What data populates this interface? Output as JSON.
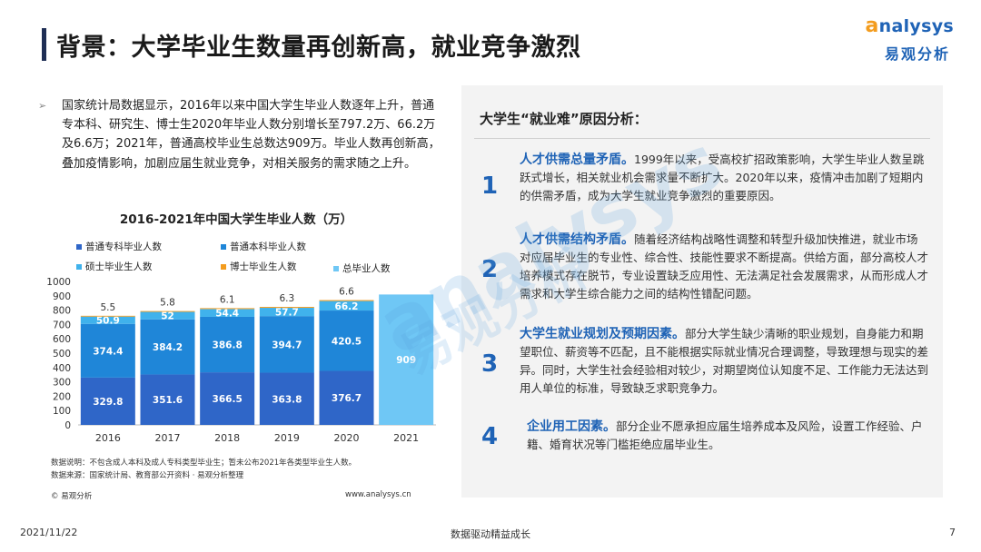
{
  "header": {
    "title": "背景：大学毕业生数量再创新高，就业竞争激烈",
    "logo_en_a": "a",
    "logo_en_rest": "nalysys",
    "logo_cn": "易观分析"
  },
  "bullet": {
    "text": "国家统计局数据显示，2016年以来中国大学生毕业人数逐年上升，普通专本科、研究生、博士生2020年毕业人数分别增长至797.2万、66.2万及6.6万；2021年，普通高校毕业生总数达909万。毕业人数再创新高，叠加疫情影响，加剧应届生就业竞争，对相关服务的需求随之上升。"
  },
  "chart_data": {
    "type": "bar",
    "title": "2016-2021年中国大学生毕业人数（万）",
    "categories": [
      "2016",
      "2017",
      "2018",
      "2019",
      "2020",
      "2021"
    ],
    "series": [
      {
        "name": "普通专科毕业人数",
        "values": [
          329.8,
          351.6,
          366.5,
          363.8,
          376.7,
          null
        ],
        "color": "#2f66c8"
      },
      {
        "name": "普通本科毕业人数",
        "values": [
          374.4,
          384.2,
          386.8,
          394.7,
          420.5,
          null
        ],
        "color": "#1f86d8"
      },
      {
        "name": "硕士毕业生人数",
        "values": [
          50.9,
          52.0,
          54.4,
          57.7,
          66.2,
          null
        ],
        "color": "#40b2ec"
      },
      {
        "name": "博士毕业生人数",
        "values": [
          5.5,
          5.8,
          6.1,
          6.3,
          6.6,
          null
        ],
        "color": "#f39c1e"
      },
      {
        "name": "总毕业人数",
        "values": [
          null,
          null,
          null,
          null,
          null,
          909
        ],
        "color": "#6fc7f5"
      }
    ],
    "ylim": [
      0,
      1000
    ],
    "yticks": [
      0,
      100,
      200,
      300,
      400,
      500,
      600,
      700,
      800,
      900,
      1000
    ],
    "stacked": true,
    "legend_position": "top"
  },
  "notes": {
    "line1": "数据说明：不包含成人本科及成人专科类型毕业生；暂未公布2021年各类型毕业生人数。",
    "line2": "数据来源：国家统计局、教育部公开资料 · 易观分析整理",
    "copyright": "© 易观分析",
    "website": "www.analysys.cn"
  },
  "right_panel": {
    "title": "大学生“就业难”原因分析：",
    "reasons": [
      {
        "num": "1",
        "head": "人才供需总量矛盾。",
        "body": "1999年以来，受高校扩招政策影响，大学生毕业人数呈跳跃式增长，相关就业机会需求量不断扩大。2020年以来，疫情冲击加剧了短期内的供需矛盾，成为大学生就业竞争激烈的重要原因。"
      },
      {
        "num": "2",
        "head": "人才供需结构矛盾。",
        "body": "随着经济结构战略性调整和转型升级加快推进，就业市场对应届毕业生的专业性、综合性、技能性要求不断提高。供给方面，部分高校人才培养模式存在脱节，专业设置缺乏应用性、无法满足社会发展需求，从而形成人才需求和大学生综合能力之间的结构性错配问题。"
      },
      {
        "num": "3",
        "head": "大学生就业规划及预期因素。",
        "body": "部分大学生缺少清晰的职业规划，自身能力和期望职位、薪资等不匹配，且不能根据实际就业情况合理调整，导致理想与现实的差异。同时，大学生社会经验相对较少，对期望岗位认知度不足、工作能力无法达到用人单位的标准，导致缺乏求职竞争力。"
      },
      {
        "num": "4",
        "head": "企业用工因素。",
        "body": "部分企业不愿承担应届生培养成本及风险，设置工作经验、户籍、婚育状况等门槛拒绝应届毕业生。"
      }
    ]
  },
  "footer": {
    "date": "2021/11/22",
    "slogan": "数据驱动精益成长",
    "page": "7"
  }
}
